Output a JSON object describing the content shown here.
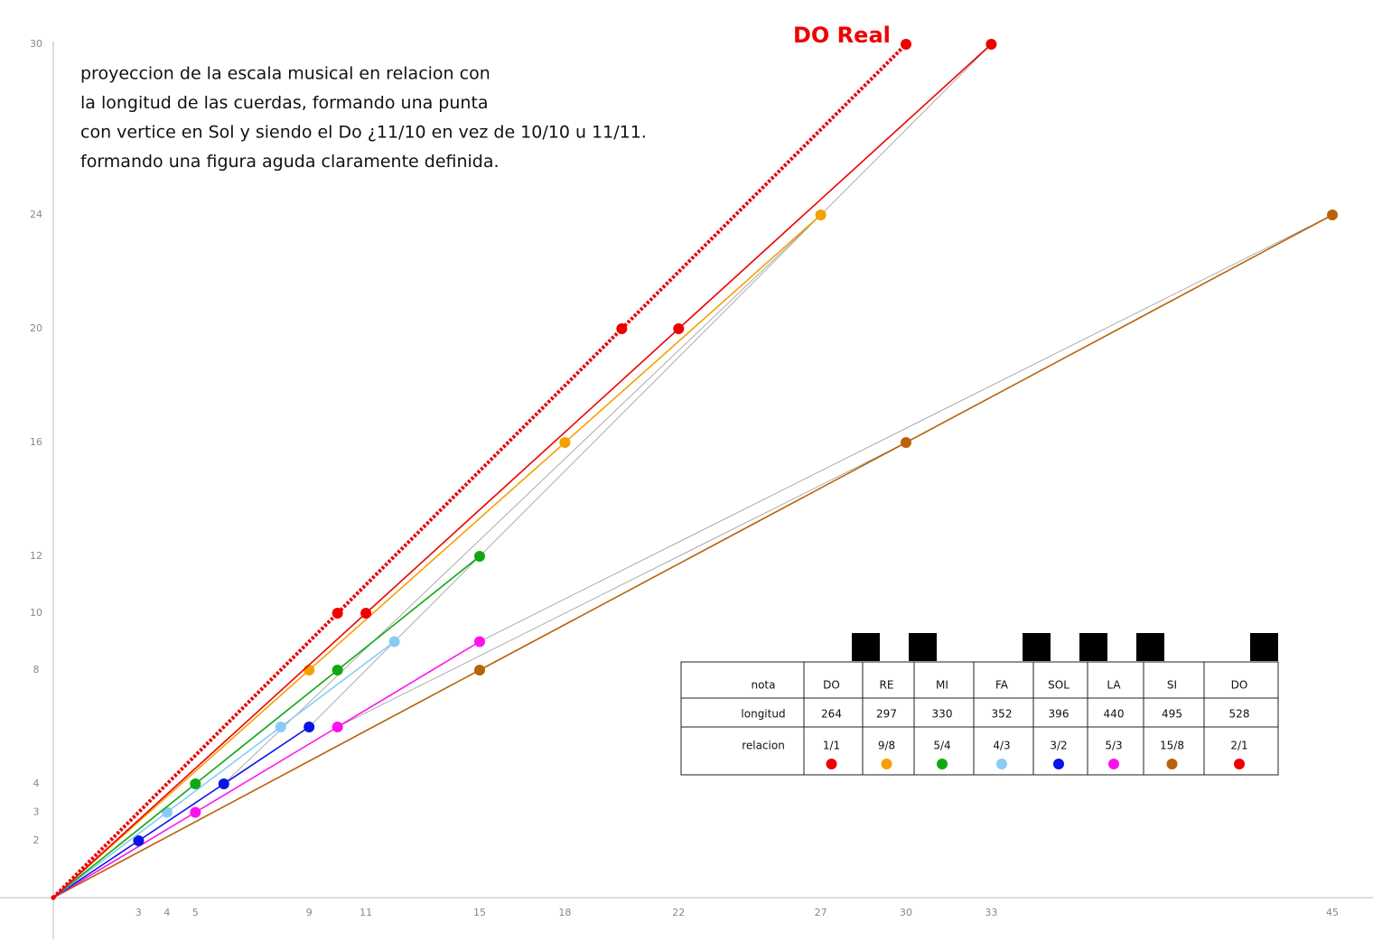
{
  "chart_data": {
    "type": "line",
    "annotation_lines": [
      "proyeccion de la escala musical en relacion con",
      "la longitud de las cuerdas, formando una punta",
      "con vertice en Sol y siendo el Do ¿11/10 en vez de 10/10 u 11/11.",
      "formando una figura aguda claramente definida."
    ],
    "label": "DO Real",
    "xlim": [
      0,
      45
    ],
    "ylim": [
      0,
      30
    ],
    "xticks": [
      3,
      4,
      5,
      9,
      11,
      15,
      18,
      22,
      27,
      30,
      33,
      45
    ],
    "yticks": [
      2,
      3,
      4,
      8,
      10,
      12,
      16,
      20,
      24,
      30
    ],
    "series": [
      {
        "color": "#ee0000",
        "dashed": true,
        "x": [
          0,
          10,
          20,
          30
        ],
        "values": [
          0,
          10,
          20,
          30
        ]
      },
      {
        "color": "#ee0000",
        "dashed": false,
        "x": [
          0,
          11,
          22,
          33
        ],
        "values": [
          0,
          10,
          20,
          30
        ]
      },
      {
        "color": "#f5a000",
        "dashed": false,
        "x": [
          0,
          9,
          18,
          27
        ],
        "values": [
          0,
          8,
          16,
          24
        ]
      },
      {
        "color": "#10a810",
        "dashed": false,
        "x": [
          0,
          5,
          10,
          15
        ],
        "values": [
          0,
          4,
          8,
          12
        ]
      },
      {
        "color": "#88ccf5",
        "dashed": false,
        "x": [
          0,
          4,
          8,
          12
        ],
        "values": [
          0,
          3,
          6,
          9
        ]
      },
      {
        "color": "#0a14e6",
        "dashed": false,
        "x": [
          0,
          3,
          6,
          9
        ],
        "values": [
          0,
          2,
          4,
          6
        ]
      },
      {
        "color": "#ff10ee",
        "dashed": false,
        "x": [
          0,
          5,
          10,
          15
        ],
        "values": [
          0,
          3,
          6,
          9
        ]
      },
      {
        "color": "#b8620a",
        "dashed": false,
        "x": [
          0,
          15,
          30,
          45
        ],
        "values": [
          0,
          8,
          16,
          24
        ]
      }
    ],
    "guides": {
      "color": "#9a9a9a",
      "x": [
        [
          9,
          33
        ],
        [
          15,
          45
        ],
        [
          6,
          27
        ],
        [
          10,
          30
        ]
      ],
      "values": [
        [
          6,
          30
        ],
        [
          9,
          24
        ],
        [
          4,
          24
        ],
        [
          6,
          16
        ]
      ]
    },
    "table": {
      "headers": [
        "nota",
        "longitud",
        "relacion"
      ],
      "notes": [
        "DO",
        "RE",
        "MI",
        "FA",
        "SOL",
        "LA",
        "SI",
        "DO"
      ],
      "lengths": [
        264,
        297,
        330,
        352,
        396,
        440,
        495,
        528
      ],
      "ratios": [
        "1/1",
        "9/8",
        "5/4",
        "4/3",
        "3/2",
        "5/3",
        "15/8",
        "2/1"
      ],
      "dot_colors": [
        "#ee0000",
        "#f5a000",
        "#10a810",
        "#88ccf5",
        "#0a14e6",
        "#ff10ee",
        "#b8620a",
        "#ee0000"
      ]
    }
  }
}
